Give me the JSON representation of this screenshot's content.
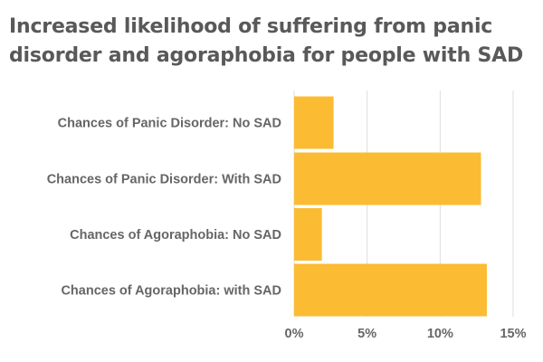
{
  "chart_data": {
    "type": "bar",
    "orientation": "horizontal",
    "title": "Increased likelihood of suffering from panic disorder and agoraphobia for people with SAD",
    "categories": [
      "Chances of Panic Disorder: No SAD",
      "Chances of Panic Disorder: With SAD",
      "Chances of Agoraphobia: No SAD",
      "Chances of Agoraphobia: with SAD"
    ],
    "values": [
      2.7,
      12.8,
      1.9,
      13.2
    ],
    "xlim": [
      0,
      15
    ],
    "xticks": [
      0,
      5,
      10,
      15
    ],
    "xtick_labels": [
      "0%",
      "5%",
      "10%",
      "15%"
    ],
    "xlabel": "",
    "ylabel": "",
    "grid": "vertical",
    "legend": "none",
    "colors": {
      "bar": "#FBBC33",
      "grid": "#DDDDDD",
      "label": "#666666",
      "title": "#595959"
    }
  }
}
